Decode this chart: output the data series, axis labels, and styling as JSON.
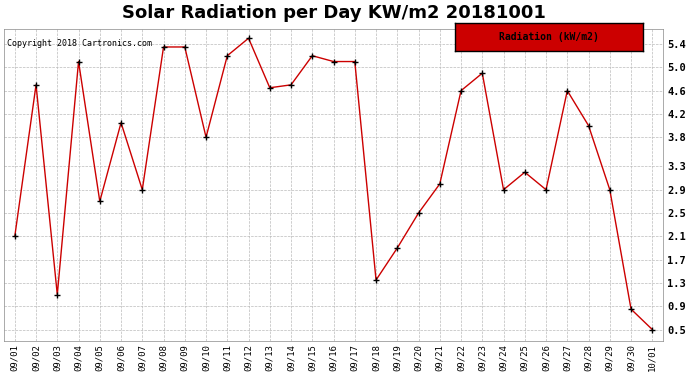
{
  "title": "Solar Radiation per Day KW/m2 20181001",
  "copyright_text": "Copyright 2018 Cartronics.com",
  "legend_label": "Radiation (kW/m2)",
  "dates": [
    "09/01",
    "09/02",
    "09/03",
    "09/04",
    "09/05",
    "09/06",
    "09/07",
    "09/08",
    "09/09",
    "09/10",
    "09/11",
    "09/12",
    "09/13",
    "09/14",
    "09/15",
    "09/16",
    "09/17",
    "09/18",
    "09/19",
    "09/20",
    "09/21",
    "09/22",
    "09/23",
    "09/24",
    "09/25",
    "09/26",
    "09/27",
    "09/28",
    "09/29",
    "09/30",
    "10/01"
  ],
  "values": [
    2.1,
    4.7,
    1.1,
    5.1,
    2.7,
    4.05,
    2.9,
    5.35,
    5.35,
    3.8,
    5.2,
    5.5,
    4.65,
    4.7,
    5.2,
    5.1,
    5.1,
    1.35,
    1.9,
    2.5,
    3.0,
    4.6,
    4.9,
    2.9,
    3.2,
    2.9,
    4.6,
    4.0,
    2.9,
    0.85,
    0.5
  ],
  "line_color": "#cc0000",
  "marker_color": "#000000",
  "bg_color": "#ffffff",
  "grid_color": "#bbbbbb",
  "yticks": [
    0.5,
    0.9,
    1.3,
    1.7,
    2.1,
    2.5,
    2.9,
    3.3,
    3.8,
    4.2,
    4.6,
    5.0,
    5.4
  ],
  "ylim": [
    0.3,
    5.65
  ],
  "title_fontsize": 13,
  "legend_bg": "#cc0000"
}
